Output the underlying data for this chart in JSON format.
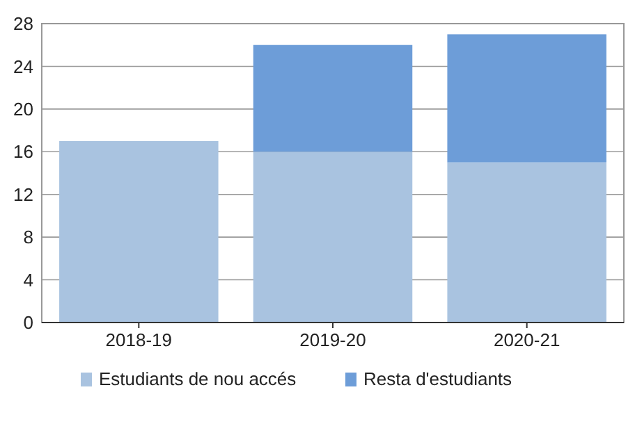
{
  "chart_data": {
    "type": "bar",
    "stacked": true,
    "categories": [
      "2018-19",
      "2019-20",
      "2020-21"
    ],
    "series": [
      {
        "name": "Estudiants de nou accés",
        "color": "#a9c3e0",
        "values": [
          17,
          16,
          15
        ]
      },
      {
        "name": "Resta d'estudiants",
        "color": "#6d9dd8",
        "values": [
          0,
          10,
          12
        ]
      }
    ],
    "ylim": [
      0,
      28
    ],
    "yticks": [
      0,
      4,
      8,
      12,
      16,
      20,
      24,
      28
    ],
    "grid": "y",
    "legend": "bottom"
  }
}
